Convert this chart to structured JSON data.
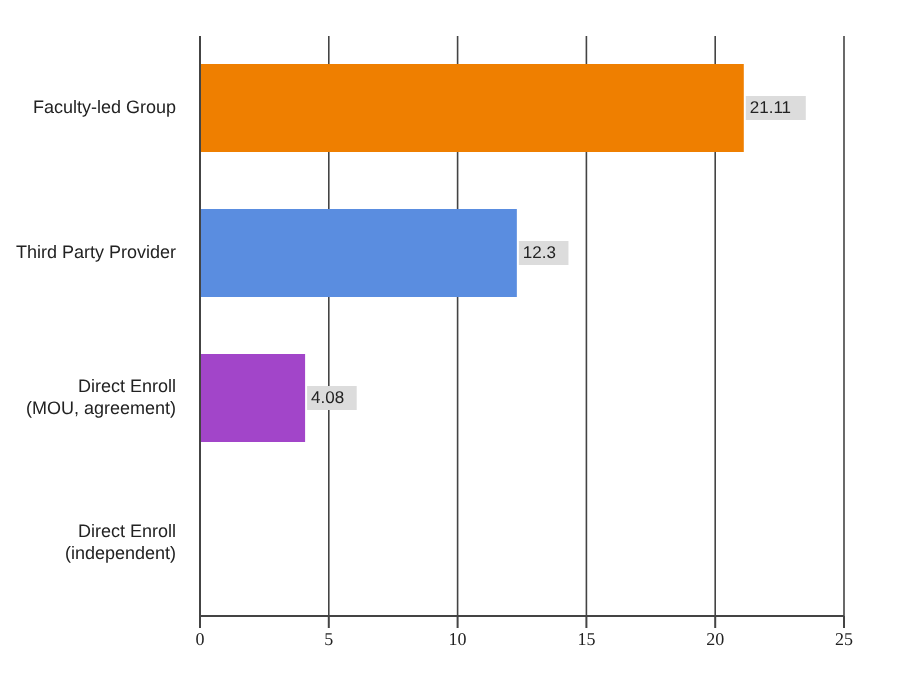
{
  "chart_data": {
    "type": "bar",
    "orientation": "horizontal",
    "categories": [
      "Faculty-led Group",
      "Third Party Provider",
      "Direct Enroll\n(MOU, agreement)",
      "Direct Enroll\n(independent)"
    ],
    "values": [
      21.11,
      12.3,
      4.08,
      0
    ],
    "colors": [
      "#ef7f00",
      "#5a8de0",
      "#a245c9",
      "#888888"
    ],
    "value_labels": [
      "21.11",
      "12.3",
      "4.08",
      null
    ],
    "xlim": [
      0,
      25
    ],
    "xticks": [
      0,
      5,
      10,
      15,
      20,
      25
    ],
    "grid": "x"
  }
}
